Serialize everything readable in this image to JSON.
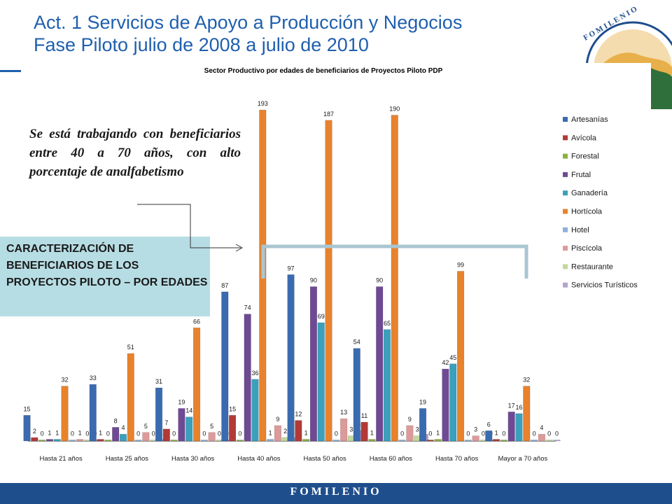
{
  "slide": {
    "title_line1": "Act. 1 Servicios de Apoyo a Producción y Negocios",
    "title_line2": "Fase Piloto julio de 2008 a julio de 2010",
    "logo_text": "FOMILENIO",
    "note": "Se está trabajando con beneficiarios entre 40 a 70 años, con alto porcentaje de analfabetismo",
    "callout": "CARACTERIZACIÓN DE BENEFICIARIOS DE LOS PROYECTOS PILOTO – POR EDADES",
    "footer": "FOMILENIO"
  },
  "colors": {
    "title": "#1f5fae",
    "callout_bg": "#b7dde4",
    "footer_bg": "#1f4e8c",
    "bracket": "#a9c6d3"
  },
  "chart_data": {
    "type": "bar",
    "title": "Sector Productivo por edades de beneficiarios de Proyectos Piloto PDP",
    "categories": [
      "Hasta 21 años",
      "Hasta 25 años",
      "Hasta 30 años",
      "Hasta 40 años",
      "Hasta 50 años",
      "Hasta 60 años",
      "Hasta 70 años",
      "Mayor a 70 años"
    ],
    "series": [
      {
        "name": "Artesanías",
        "color": "#3a6bb0",
        "values": [
          15,
          33,
          31,
          87,
          97,
          54,
          19,
          6
        ]
      },
      {
        "name": "Avícola",
        "color": "#b23a36",
        "values": [
          2,
          1,
          7,
          15,
          12,
          11,
          0,
          1
        ]
      },
      {
        "name": "Forestal",
        "color": "#8cb040",
        "values": [
          0,
          0,
          0,
          0,
          1,
          1,
          1,
          0
        ]
      },
      {
        "name": "Frutal",
        "color": "#6e4a94",
        "values": [
          1,
          8,
          19,
          74,
          90,
          90,
          42,
          17
        ]
      },
      {
        "name": "Ganadería",
        "color": "#3aa0bb",
        "values": [
          1,
          4,
          14,
          36,
          69,
          65,
          45,
          16
        ]
      },
      {
        "name": "Hortícola",
        "color": "#e8822c",
        "values": [
          32,
          51,
          66,
          193,
          187,
          190,
          99,
          32
        ]
      },
      {
        "name": "Hotel",
        "color": "#8db0dc",
        "values": [
          0,
          0,
          0,
          1,
          0,
          0,
          0,
          0
        ]
      },
      {
        "name": "Piscícola",
        "color": "#dd9a9a",
        "values": [
          1,
          5,
          5,
          9,
          13,
          9,
          3,
          4
        ]
      },
      {
        "name": "Restaurante",
        "color": "#c3d99b",
        "values": [
          0,
          0,
          0,
          2,
          3,
          3,
          0,
          0
        ]
      },
      {
        "name": "Servicios Turísticos",
        "color": "#b3a4cf",
        "values": [
          0,
          1,
          0,
          2,
          6,
          4,
          0,
          0
        ]
      }
    ],
    "ylim": [
      0,
      200
    ],
    "grid": false,
    "legend": "right",
    "xlabel": "",
    "ylabel": ""
  }
}
